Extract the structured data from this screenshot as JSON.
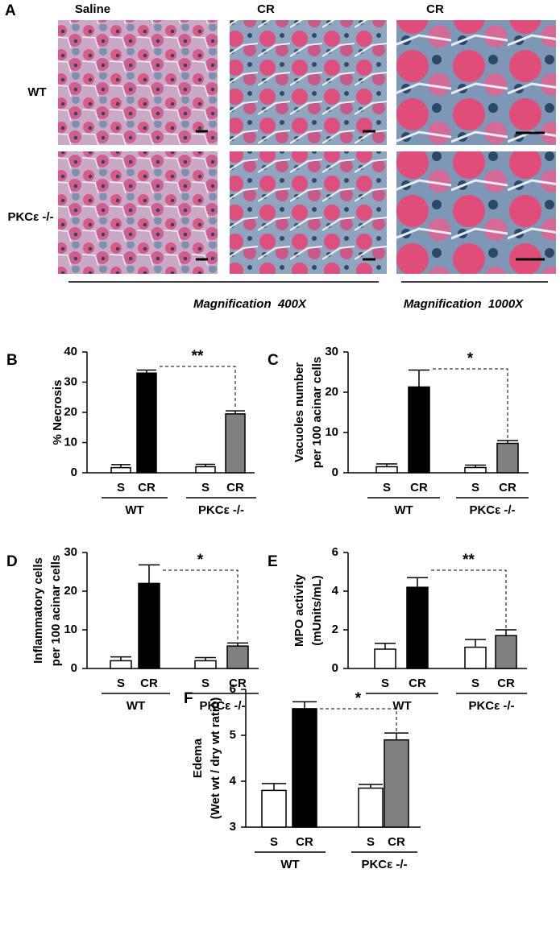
{
  "panel_a": {
    "label": "A",
    "columns": [
      "Saline",
      "CR",
      "CR"
    ],
    "rows": [
      "WT",
      "PKCε -/-"
    ],
    "magnifications": [
      "Magnification  400X",
      "Magnification  1000X"
    ]
  },
  "chart_data": [
    {
      "panel": "B",
      "type": "bar",
      "ylabel": [
        "% Necrosis"
      ],
      "categories": [
        "S",
        "CR",
        "S",
        "CR"
      ],
      "groups": [
        "WT",
        "PKCε -/-"
      ],
      "values": [
        1.7,
        33,
        2,
        19.5
      ],
      "errors": [
        1,
        1,
        0.8,
        1
      ],
      "colors": [
        "#ffffff",
        "#000000",
        "#ffffff",
        "#808080"
      ],
      "significance": "**",
      "ylim": [
        0,
        40
      ],
      "yticks": [
        0,
        10,
        20,
        30,
        40
      ]
    },
    {
      "panel": "C",
      "type": "bar",
      "ylabel": [
        "Vacuoles number",
        "per 100 acinar cells"
      ],
      "categories": [
        "S",
        "CR",
        "S",
        "CR"
      ],
      "groups": [
        "WT",
        "PKCε -/-"
      ],
      "values": [
        1.5,
        21.3,
        1.3,
        7.3
      ],
      "errors": [
        0.7,
        4.2,
        0.6,
        0.7
      ],
      "colors": [
        "#ffffff",
        "#000000",
        "#ffffff",
        "#808080"
      ],
      "significance": "*",
      "ylim": [
        0,
        30
      ],
      "yticks": [
        0,
        10,
        20,
        30
      ]
    },
    {
      "panel": "D",
      "type": "bar",
      "ylabel": [
        "Inflammatory cells",
        "per 100 acinar cells"
      ],
      "categories": [
        "S",
        "CR",
        "S",
        "CR"
      ],
      "groups": [
        "WT",
        "PKCε -/-"
      ],
      "values": [
        2,
        22,
        2,
        5.8
      ],
      "errors": [
        1,
        4.8,
        0.8,
        0.8
      ],
      "colors": [
        "#ffffff",
        "#000000",
        "#ffffff",
        "#808080"
      ],
      "significance": "*",
      "ylim": [
        0,
        30
      ],
      "yticks": [
        0,
        10,
        20,
        30
      ]
    },
    {
      "panel": "E",
      "type": "bar",
      "ylabel": [
        "MPO activity",
        "(mUnits/mL)"
      ],
      "categories": [
        "S",
        "CR",
        "S",
        "CR"
      ],
      "groups": [
        "WT",
        "PKCε -/-"
      ],
      "values": [
        1,
        4.2,
        1.1,
        1.7
      ],
      "errors": [
        0.3,
        0.5,
        0.4,
        0.3
      ],
      "colors": [
        "#ffffff",
        "#000000",
        "#ffffff",
        "#808080"
      ],
      "significance": "**",
      "ylim": [
        0,
        6
      ],
      "yticks": [
        0,
        2,
        4,
        6
      ]
    },
    {
      "panel": "F",
      "type": "bar",
      "ylabel": [
        "Edema",
        "(Wet wt / dry wt ratio)"
      ],
      "categories": [
        "S",
        "CR",
        "S",
        "CR"
      ],
      "groups": [
        "WT",
        "PKCε -/-"
      ],
      "values": [
        3.8,
        5.58,
        3.85,
        4.9
      ],
      "errors": [
        0.15,
        0.15,
        0.08,
        0.15
      ],
      "colors": [
        "#ffffff",
        "#000000",
        "#ffffff",
        "#808080"
      ],
      "significance": "*",
      "ylim": [
        3,
        6
      ],
      "yticks": [
        3,
        4,
        5,
        6
      ]
    }
  ]
}
